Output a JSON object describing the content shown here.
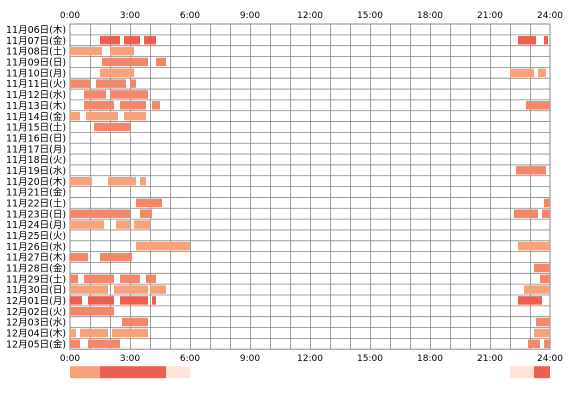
{
  "chart_data": {
    "type": "heatmap",
    "x_unit": "hour of day",
    "xlim": [
      0,
      24
    ],
    "x_ticks": [
      "0:00",
      "3:00",
      "6:00",
      "9:00",
      "12:00",
      "15:00",
      "18:00",
      "21:00",
      "24:00"
    ],
    "grid": true,
    "colors": {
      "main": "#f4876a",
      "dark": "#ef5f50",
      "light": "#f8a27c",
      "grid": "#888888",
      "summary_light": "#fde3d8"
    },
    "rows": [
      {
        "label": "11月06日(木)",
        "segments": []
      },
      {
        "label": "11月07日(金)",
        "segments": [
          [
            1.5,
            2.5,
            "d"
          ],
          [
            2.7,
            3.5,
            "d"
          ],
          [
            3.7,
            4.3,
            "d"
          ],
          [
            22.4,
            23.3,
            "d"
          ],
          [
            23.7,
            23.9,
            "d"
          ]
        ]
      },
      {
        "label": "11月08日(土)",
        "segments": [
          [
            0,
            1.6,
            "l"
          ],
          [
            2.0,
            3.2,
            "l"
          ]
        ]
      },
      {
        "label": "11月09日(日)",
        "segments": [
          [
            1.6,
            3.9,
            "m"
          ],
          [
            4.3,
            4.8,
            "m"
          ]
        ]
      },
      {
        "label": "11月10日(月)",
        "segments": [
          [
            1.5,
            3.2,
            "l"
          ],
          [
            22.0,
            23.2,
            "l"
          ],
          [
            23.4,
            23.8,
            "l"
          ]
        ]
      },
      {
        "label": "11月11日(火)",
        "segments": [
          [
            0,
            1.0,
            "m"
          ],
          [
            1.3,
            2.8,
            "m"
          ],
          [
            3.0,
            3.3,
            "m"
          ]
        ]
      },
      {
        "label": "11月12日(水)",
        "segments": [
          [
            0.7,
            1.8,
            "m"
          ],
          [
            2.0,
            3.9,
            "m"
          ]
        ]
      },
      {
        "label": "11月13日(木)",
        "segments": [
          [
            0.7,
            2.2,
            "m"
          ],
          [
            2.5,
            3.8,
            "m"
          ],
          [
            4.1,
            4.5,
            "m"
          ],
          [
            22.8,
            24,
            "m"
          ]
        ]
      },
      {
        "label": "11月14日(金)",
        "segments": [
          [
            0,
            0.5,
            "l"
          ],
          [
            0.8,
            2.4,
            "l"
          ],
          [
            2.7,
            3.8,
            "l"
          ]
        ]
      },
      {
        "label": "11月15日(土)",
        "segments": [
          [
            1.2,
            3.0,
            "m"
          ]
        ]
      },
      {
        "label": "11月16日(日)",
        "segments": []
      },
      {
        "label": "11月17日(月)",
        "segments": []
      },
      {
        "label": "11月18日(火)",
        "segments": []
      },
      {
        "label": "11月19日(水)",
        "segments": [
          [
            22.3,
            23.8,
            "m"
          ]
        ]
      },
      {
        "label": "11月20日(木)",
        "segments": [
          [
            0,
            1.1,
            "l"
          ],
          [
            1.9,
            3.3,
            "l"
          ],
          [
            3.5,
            3.8,
            "l"
          ]
        ]
      },
      {
        "label": "11月21日(金)",
        "segments": []
      },
      {
        "label": "11月22日(土)",
        "segments": [
          [
            3.3,
            4.6,
            "m"
          ],
          [
            23.7,
            24,
            "m"
          ]
        ]
      },
      {
        "label": "11月23日(日)",
        "segments": [
          [
            0,
            3.0,
            "m"
          ],
          [
            3.5,
            4.1,
            "m"
          ],
          [
            22.2,
            23.4,
            "m"
          ],
          [
            23.6,
            24,
            "m"
          ]
        ]
      },
      {
        "label": "11月24日(月)",
        "segments": [
          [
            0,
            1.7,
            "l"
          ],
          [
            2.3,
            3.0,
            "l"
          ],
          [
            3.2,
            4.0,
            "l"
          ]
        ]
      },
      {
        "label": "11月25日(火)",
        "segments": []
      },
      {
        "label": "11月26日(水)",
        "segments": [
          [
            3.3,
            6.0,
            "l"
          ],
          [
            22.4,
            24,
            "l"
          ]
        ]
      },
      {
        "label": "11月27日(木)",
        "segments": [
          [
            0,
            0.9,
            "m"
          ],
          [
            1.5,
            3.1,
            "m"
          ]
        ]
      },
      {
        "label": "11月28日(金)",
        "segments": [
          [
            23.2,
            24,
            "m"
          ]
        ]
      },
      {
        "label": "11月29日(土)",
        "segments": [
          [
            0,
            0.4,
            "m"
          ],
          [
            0.7,
            2.2,
            "m"
          ],
          [
            2.5,
            3.5,
            "m"
          ],
          [
            3.8,
            4.3,
            "m"
          ],
          [
            23.5,
            24,
            "m"
          ]
        ]
      },
      {
        "label": "11月30日(日)",
        "segments": [
          [
            0,
            1.9,
            "l"
          ],
          [
            2.2,
            3.9,
            "l"
          ],
          [
            4.0,
            4.8,
            "l"
          ],
          [
            22.7,
            24,
            "l"
          ]
        ]
      },
      {
        "label": "12月01日(月)",
        "segments": [
          [
            0,
            0.6,
            "d"
          ],
          [
            0.9,
            2.2,
            "d"
          ],
          [
            2.5,
            3.9,
            "d"
          ],
          [
            4.1,
            4.3,
            "d"
          ],
          [
            22.4,
            23.6,
            "d"
          ]
        ]
      },
      {
        "label": "12月02日(火)",
        "segments": [
          [
            0,
            2.2,
            "m"
          ]
        ]
      },
      {
        "label": "12月03日(水)",
        "segments": [
          [
            2.6,
            3.9,
            "m"
          ],
          [
            23.3,
            24,
            "m"
          ]
        ]
      },
      {
        "label": "12月04日(木)",
        "segments": [
          [
            0,
            0.3,
            "l"
          ],
          [
            0.5,
            1.9,
            "l"
          ],
          [
            2.1,
            3.9,
            "l"
          ],
          [
            23.2,
            24,
            "l"
          ]
        ]
      },
      {
        "label": "12月05日(金)",
        "segments": [
          [
            0,
            0.5,
            "m"
          ],
          [
            0.9,
            2.5,
            "m"
          ],
          [
            22.9,
            23.5,
            "m"
          ],
          [
            23.7,
            24,
            "m"
          ]
        ]
      }
    ],
    "summary_bar": [
      {
        "from": 0,
        "to": 1.5,
        "shade": "mid"
      },
      {
        "from": 1.5,
        "to": 4.8,
        "shade": "dark"
      },
      {
        "from": 4.8,
        "to": 6.0,
        "shade": "light"
      },
      {
        "from": 6.0,
        "to": 22.0,
        "shade": "none"
      },
      {
        "from": 22.0,
        "to": 23.2,
        "shade": "light"
      },
      {
        "from": 23.2,
        "to": 24.0,
        "shade": "dark"
      }
    ]
  }
}
